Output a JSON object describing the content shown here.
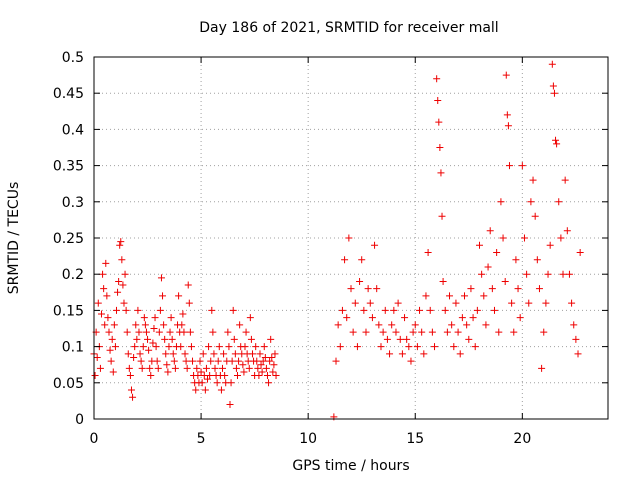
{
  "chart_data": {
    "type": "scatter",
    "title": "Day 186 of 2021, SRMTID for receiver mall",
    "xlabel": "GPS time / hours",
    "ylabel": "SRMTID / TECUs",
    "xlim": [
      0,
      24
    ],
    "ylim": [
      0,
      0.5
    ],
    "x_ticks": [
      0,
      5,
      10,
      15,
      20
    ],
    "x_tick_labels": [
      "0",
      "5",
      "10",
      "15",
      "20"
    ],
    "y_ticks": [
      0,
      0.05,
      0.1,
      0.15,
      0.2,
      0.25,
      0.3,
      0.35,
      0.4,
      0.45,
      0.5
    ],
    "y_tick_labels": [
      "0",
      "0.05",
      "0.1",
      "0.15",
      "0.2",
      "0.25",
      "0.3",
      "0.35",
      "0.4",
      "0.45",
      "0.5"
    ],
    "grid": true,
    "legend": "none",
    "series_color": "#ee0000",
    "series": [
      {
        "name": "SRMTID",
        "marker": "plus",
        "points": [
          [
            0.0,
            0.09
          ],
          [
            0.05,
            0.06
          ],
          [
            0.1,
            0.12
          ],
          [
            0.15,
            0.085
          ],
          [
            0.2,
            0.16
          ],
          [
            0.25,
            0.1
          ],
          [
            0.3,
            0.07
          ],
          [
            0.35,
            0.145
          ],
          [
            0.4,
            0.2
          ],
          [
            0.45,
            0.18
          ],
          [
            0.5,
            0.13
          ],
          [
            0.55,
            0.215
          ],
          [
            0.6,
            0.17
          ],
          [
            0.65,
            0.14
          ],
          [
            0.7,
            0.12
          ],
          [
            0.75,
            0.095
          ],
          [
            0.8,
            0.08
          ],
          [
            0.85,
            0.11
          ],
          [
            0.9,
            0.065
          ],
          [
            0.95,
            0.13
          ],
          [
            1.0,
            0.1
          ],
          [
            1.05,
            0.15
          ],
          [
            1.1,
            0.175
          ],
          [
            1.15,
            0.19
          ],
          [
            1.2,
            0.24
          ],
          [
            1.25,
            0.245
          ],
          [
            1.3,
            0.22
          ],
          [
            1.35,
            0.185
          ],
          [
            1.4,
            0.16
          ],
          [
            1.45,
            0.2
          ],
          [
            1.5,
            0.15
          ],
          [
            1.55,
            0.12
          ],
          [
            1.6,
            0.09
          ],
          [
            1.65,
            0.07
          ],
          [
            1.7,
            0.06
          ],
          [
            1.75,
            0.04
          ],
          [
            1.8,
            0.03
          ],
          [
            1.85,
            0.085
          ],
          [
            1.9,
            0.1
          ],
          [
            1.95,
            0.13
          ],
          [
            2.0,
            0.11
          ],
          [
            2.05,
            0.15
          ],
          [
            2.1,
            0.12
          ],
          [
            2.15,
            0.09
          ],
          [
            2.2,
            0.08
          ],
          [
            2.25,
            0.07
          ],
          [
            2.3,
            0.1
          ],
          [
            2.35,
            0.14
          ],
          [
            2.4,
            0.13
          ],
          [
            2.45,
            0.12
          ],
          [
            2.5,
            0.11
          ],
          [
            2.55,
            0.095
          ],
          [
            2.6,
            0.07
          ],
          [
            2.65,
            0.06
          ],
          [
            2.7,
            0.08
          ],
          [
            2.75,
            0.105
          ],
          [
            2.8,
            0.125
          ],
          [
            2.85,
            0.14
          ],
          [
            2.9,
            0.1
          ],
          [
            2.95,
            0.08
          ],
          [
            3.0,
            0.07
          ],
          [
            3.05,
            0.12
          ],
          [
            3.1,
            0.15
          ],
          [
            3.15,
            0.195
          ],
          [
            3.2,
            0.17
          ],
          [
            3.25,
            0.13
          ],
          [
            3.3,
            0.11
          ],
          [
            3.35,
            0.09
          ],
          [
            3.4,
            0.075
          ],
          [
            3.45,
            0.065
          ],
          [
            3.5,
            0.1
          ],
          [
            3.55,
            0.12
          ],
          [
            3.6,
            0.14
          ],
          [
            3.65,
            0.11
          ],
          [
            3.7,
            0.09
          ],
          [
            3.75,
            0.08
          ],
          [
            3.8,
            0.07
          ],
          [
            3.85,
            0.1
          ],
          [
            3.9,
            0.13
          ],
          [
            3.95,
            0.17
          ],
          [
            4.0,
            0.12
          ],
          [
            4.05,
            0.1
          ],
          [
            4.1,
            0.13
          ],
          [
            4.15,
            0.145
          ],
          [
            4.2,
            0.12
          ],
          [
            4.25,
            0.09
          ],
          [
            4.3,
            0.08
          ],
          [
            4.35,
            0.07
          ],
          [
            4.4,
            0.185
          ],
          [
            4.45,
            0.16
          ],
          [
            4.5,
            0.12
          ],
          [
            4.55,
            0.1
          ],
          [
            4.6,
            0.08
          ],
          [
            4.65,
            0.06
          ],
          [
            4.7,
            0.05
          ],
          [
            4.75,
            0.04
          ],
          [
            4.8,
            0.07
          ],
          [
            4.85,
            0.06
          ],
          [
            4.9,
            0.05
          ],
          [
            4.95,
            0.08
          ],
          [
            5.0,
            0.065
          ],
          [
            5.05,
            0.05
          ],
          [
            5.1,
            0.09
          ],
          [
            5.15,
            0.06
          ],
          [
            5.2,
            0.04
          ],
          [
            5.25,
            0.07
          ],
          [
            5.3,
            0.055
          ],
          [
            5.35,
            0.1
          ],
          [
            5.4,
            0.06
          ],
          [
            5.45,
            0.08
          ],
          [
            5.5,
            0.15
          ],
          [
            5.55,
            0.12
          ],
          [
            5.6,
            0.09
          ],
          [
            5.65,
            0.07
          ],
          [
            5.7,
            0.06
          ],
          [
            5.75,
            0.05
          ],
          [
            5.8,
            0.08
          ],
          [
            5.85,
            0.1
          ],
          [
            5.9,
            0.06
          ],
          [
            5.95,
            0.04
          ],
          [
            6.0,
            0.07
          ],
          [
            6.05,
            0.09
          ],
          [
            6.1,
            0.06
          ],
          [
            6.15,
            0.05
          ],
          [
            6.2,
            0.08
          ],
          [
            6.25,
            0.12
          ],
          [
            6.3,
            0.1
          ],
          [
            6.35,
            0.02
          ],
          [
            6.4,
            0.05
          ],
          [
            6.45,
            0.08
          ],
          [
            6.5,
            0.15
          ],
          [
            6.55,
            0.11
          ],
          [
            6.6,
            0.09
          ],
          [
            6.65,
            0.07
          ],
          [
            6.7,
            0.06
          ],
          [
            6.75,
            0.08
          ],
          [
            6.8,
            0.13
          ],
          [
            6.85,
            0.1
          ],
          [
            6.9,
            0.09
          ],
          [
            6.95,
            0.075
          ],
          [
            7.0,
            0.065
          ],
          [
            7.05,
            0.1
          ],
          [
            7.1,
            0.12
          ],
          [
            7.15,
            0.09
          ],
          [
            7.2,
            0.08
          ],
          [
            7.25,
            0.07
          ],
          [
            7.3,
            0.14
          ],
          [
            7.35,
            0.11
          ],
          [
            7.4,
            0.09
          ],
          [
            7.45,
            0.08
          ],
          [
            7.5,
            0.06
          ],
          [
            7.55,
            0.1
          ],
          [
            7.6,
            0.08
          ],
          [
            7.65,
            0.07
          ],
          [
            7.7,
            0.06
          ],
          [
            7.75,
            0.09
          ],
          [
            7.8,
            0.075
          ],
          [
            7.85,
            0.065
          ],
          [
            7.9,
            0.08
          ],
          [
            7.95,
            0.1
          ],
          [
            8.0,
            0.085
          ],
          [
            8.05,
            0.07
          ],
          [
            8.1,
            0.06
          ],
          [
            8.15,
            0.05
          ],
          [
            8.2,
            0.08
          ],
          [
            8.25,
            0.11
          ],
          [
            8.3,
            0.085
          ],
          [
            8.35,
            0.065
          ],
          [
            8.4,
            0.075
          ],
          [
            8.45,
            0.09
          ],
          [
            8.5,
            0.06
          ],
          [
            11.2,
            0.003
          ],
          [
            11.3,
            0.08
          ],
          [
            11.4,
            0.13
          ],
          [
            11.5,
            0.1
          ],
          [
            11.6,
            0.15
          ],
          [
            11.7,
            0.22
          ],
          [
            11.8,
            0.14
          ],
          [
            11.9,
            0.25
          ],
          [
            12.0,
            0.18
          ],
          [
            12.1,
            0.12
          ],
          [
            12.2,
            0.16
          ],
          [
            12.3,
            0.1
          ],
          [
            12.4,
            0.19
          ],
          [
            12.5,
            0.22
          ],
          [
            12.6,
            0.15
          ],
          [
            12.7,
            0.12
          ],
          [
            12.8,
            0.18
          ],
          [
            12.9,
            0.16
          ],
          [
            13.0,
            0.14
          ],
          [
            13.1,
            0.24
          ],
          [
            13.2,
            0.18
          ],
          [
            13.3,
            0.13
          ],
          [
            13.4,
            0.1
          ],
          [
            13.5,
            0.12
          ],
          [
            13.6,
            0.15
          ],
          [
            13.7,
            0.11
          ],
          [
            13.8,
            0.09
          ],
          [
            13.9,
            0.13
          ],
          [
            14.0,
            0.15
          ],
          [
            14.1,
            0.12
          ],
          [
            14.2,
            0.16
          ],
          [
            14.3,
            0.11
          ],
          [
            14.4,
            0.09
          ],
          [
            14.5,
            0.14
          ],
          [
            14.6,
            0.11
          ],
          [
            14.7,
            0.1
          ],
          [
            14.8,
            0.08
          ],
          [
            14.9,
            0.12
          ],
          [
            15.0,
            0.13
          ],
          [
            15.1,
            0.1
          ],
          [
            15.2,
            0.15
          ],
          [
            15.3,
            0.12
          ],
          [
            15.4,
            0.09
          ],
          [
            15.5,
            0.17
          ],
          [
            15.6,
            0.23
          ],
          [
            15.7,
            0.15
          ],
          [
            15.8,
            0.12
          ],
          [
            15.9,
            0.1
          ],
          [
            16.0,
            0.47
          ],
          [
            16.05,
            0.44
          ],
          [
            16.1,
            0.41
          ],
          [
            16.15,
            0.375
          ],
          [
            16.2,
            0.34
          ],
          [
            16.25,
            0.28
          ],
          [
            16.3,
            0.19
          ],
          [
            16.4,
            0.15
          ],
          [
            16.5,
            0.12
          ],
          [
            16.6,
            0.17
          ],
          [
            16.7,
            0.13
          ],
          [
            16.8,
            0.1
          ],
          [
            16.9,
            0.16
          ],
          [
            17.0,
            0.12
          ],
          [
            17.1,
            0.09
          ],
          [
            17.2,
            0.14
          ],
          [
            17.3,
            0.17
          ],
          [
            17.4,
            0.13
          ],
          [
            17.5,
            0.11
          ],
          [
            17.6,
            0.18
          ],
          [
            17.7,
            0.14
          ],
          [
            17.8,
            0.1
          ],
          [
            17.9,
            0.15
          ],
          [
            18.0,
            0.24
          ],
          [
            18.1,
            0.2
          ],
          [
            18.2,
            0.17
          ],
          [
            18.3,
            0.13
          ],
          [
            18.4,
            0.21
          ],
          [
            18.5,
            0.26
          ],
          [
            18.6,
            0.18
          ],
          [
            18.7,
            0.15
          ],
          [
            18.8,
            0.23
          ],
          [
            18.9,
            0.12
          ],
          [
            19.0,
            0.3
          ],
          [
            19.1,
            0.25
          ],
          [
            19.2,
            0.19
          ],
          [
            19.25,
            0.475
          ],
          [
            19.3,
            0.42
          ],
          [
            19.35,
            0.405
          ],
          [
            19.4,
            0.35
          ],
          [
            19.5,
            0.16
          ],
          [
            19.6,
            0.12
          ],
          [
            19.7,
            0.22
          ],
          [
            19.8,
            0.18
          ],
          [
            19.9,
            0.14
          ],
          [
            20.0,
            0.35
          ],
          [
            20.1,
            0.25
          ],
          [
            20.2,
            0.2
          ],
          [
            20.3,
            0.16
          ],
          [
            20.4,
            0.3
          ],
          [
            20.5,
            0.33
          ],
          [
            20.6,
            0.28
          ],
          [
            20.7,
            0.22
          ],
          [
            20.8,
            0.18
          ],
          [
            20.9,
            0.07
          ],
          [
            21.0,
            0.12
          ],
          [
            21.1,
            0.16
          ],
          [
            21.2,
            0.2
          ],
          [
            21.3,
            0.24
          ],
          [
            21.4,
            0.49
          ],
          [
            21.45,
            0.46
          ],
          [
            21.5,
            0.45
          ],
          [
            21.55,
            0.385
          ],
          [
            21.6,
            0.38
          ],
          [
            21.7,
            0.3
          ],
          [
            21.8,
            0.25
          ],
          [
            21.9,
            0.2
          ],
          [
            22.0,
            0.33
          ],
          [
            22.1,
            0.26
          ],
          [
            22.2,
            0.2
          ],
          [
            22.3,
            0.16
          ],
          [
            22.4,
            0.13
          ],
          [
            22.5,
            0.11
          ],
          [
            22.6,
            0.09
          ],
          [
            22.7,
            0.23
          ]
        ]
      }
    ]
  }
}
